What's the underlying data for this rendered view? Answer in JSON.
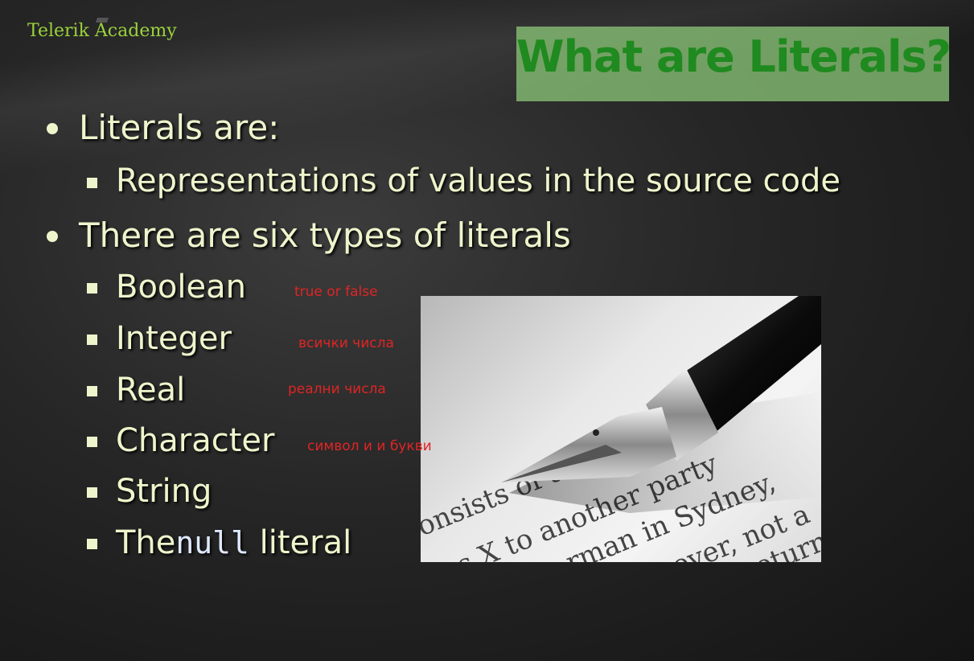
{
  "brand": {
    "logo_text": "Telerik Academy"
  },
  "slide": {
    "title": "What are Literals?",
    "bullets": [
      {
        "text": "Literals are:"
      },
      {
        "text": "Representations of values in the source code"
      },
      {
        "text": "There are six types of literals"
      }
    ],
    "types": [
      {
        "label": "Boolean",
        "note": "true or false"
      },
      {
        "label": "Integer",
        "note": "всички числа"
      },
      {
        "label": "Real",
        "note": "реални числа"
      },
      {
        "label": "Character",
        "note": "символ и и букви"
      },
      {
        "label": "String"
      },
      {
        "prefix": "The",
        "code": "null",
        "suffix": "literal"
      }
    ]
  },
  "image": {
    "lines": [
      "onsists of a trans",
      "s X to another party",
      "rman in Sydney,",
      "wever, not a",
      "eturn"
    ]
  }
}
